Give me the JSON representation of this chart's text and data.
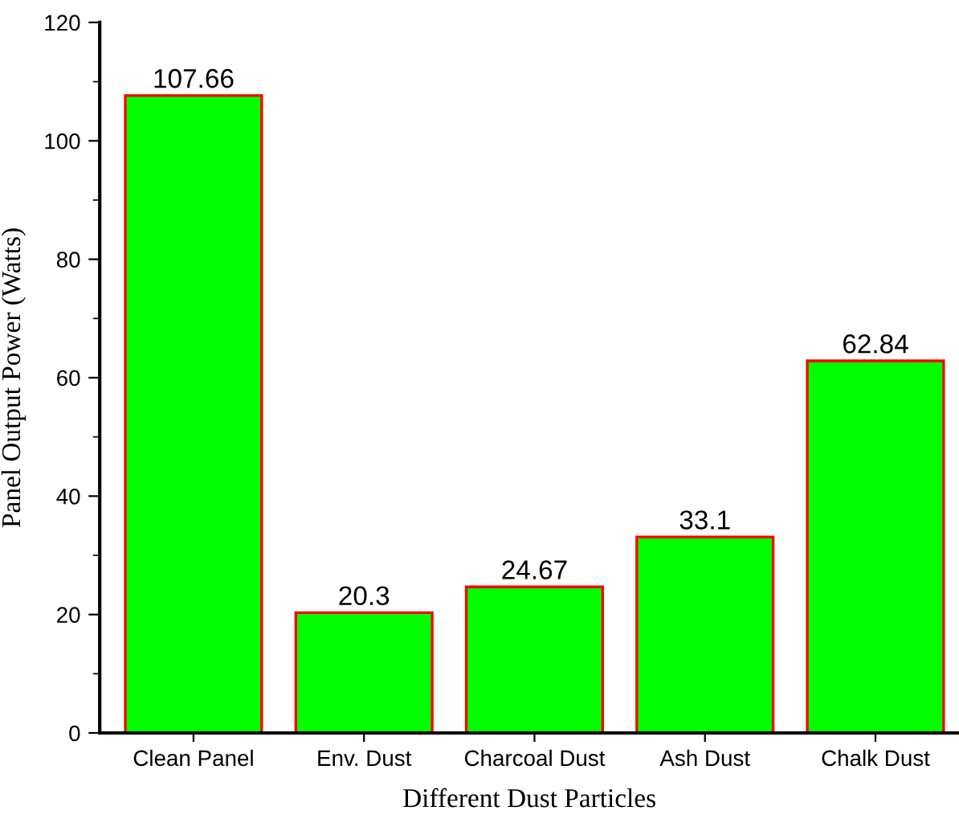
{
  "chart_data": {
    "type": "bar",
    "xlabel": "Different Dust Particles",
    "ylabel": "Panel Output Power (Watts)",
    "categories": [
      "Clean Panel",
      "Env. Dust",
      "Charcoal Dust",
      "Ash Dust",
      "Chalk Dust"
    ],
    "values": [
      107.66,
      20.3,
      24.67,
      33.1,
      62.84
    ],
    "value_labels": [
      "107.66",
      "20.3",
      "24.67",
      "33.1",
      "62.84"
    ],
    "color": "#00ff00",
    "ylim": [
      0,
      120
    ],
    "yticks": [
      0,
      20,
      40,
      60,
      80,
      100,
      120
    ],
    "grid": false
  }
}
